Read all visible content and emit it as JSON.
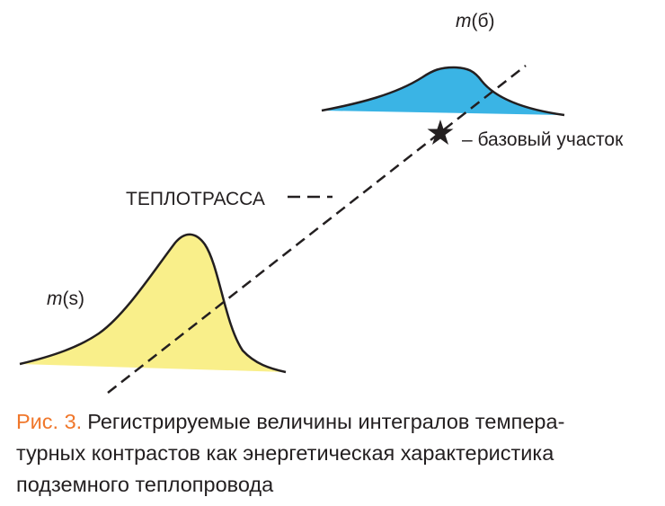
{
  "labels": {
    "top_curve": {
      "symbol": "m",
      "arg": "(б)"
    },
    "bottom_curve": {
      "symbol": "m",
      "arg": "(s)"
    },
    "base_section": "– базовый участок",
    "pipeline": "ТЕПЛОТРАССА"
  },
  "caption": {
    "label": "Рис. 3.",
    "lines": [
      "Регистрируемые величины интегралов темпера-",
      "турных контрастов как энергетическая характеристика",
      "подземного теплопровода"
    ]
  }
}
